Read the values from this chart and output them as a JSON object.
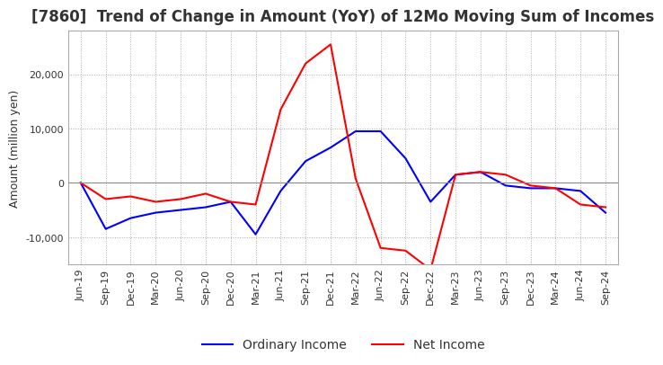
{
  "title": "[7860]  Trend of Change in Amount (YoY) of 12Mo Moving Sum of Incomes",
  "ylabel": "Amount (million yen)",
  "ylim": [
    -15000,
    28000
  ],
  "yticks": [
    -10000,
    0,
    10000,
    20000
  ],
  "background_color": "#ffffff",
  "grid_color": "#aaaaaa",
  "x_labels": [
    "Jun-19",
    "Sep-19",
    "Dec-19",
    "Mar-20",
    "Jun-20",
    "Sep-20",
    "Dec-20",
    "Mar-21",
    "Jun-21",
    "Sep-21",
    "Dec-21",
    "Mar-22",
    "Jun-22",
    "Sep-22",
    "Dec-22",
    "Mar-23",
    "Jun-23",
    "Sep-23",
    "Dec-23",
    "Mar-24",
    "Jun-24",
    "Sep-24"
  ],
  "ordinary_income": [
    0,
    -8500,
    -6500,
    -5500,
    -5000,
    -4500,
    -3500,
    -9500,
    -1500,
    4000,
    6500,
    9500,
    9500,
    4500,
    -3500,
    1500,
    2000,
    -500,
    -1000,
    -1000,
    -1500,
    -5500
  ],
  "net_income": [
    0,
    -3000,
    -2500,
    -3500,
    -3000,
    -2000,
    -3500,
    -4000,
    13500,
    22000,
    25500,
    800,
    -12000,
    -12500,
    -16000,
    1500,
    2000,
    1500,
    -500,
    -1000,
    -4000,
    -4500
  ],
  "ordinary_color": "#0000ff",
  "net_color": "#ff0000",
  "title_fontsize": 12,
  "axis_fontsize": 9,
  "tick_fontsize": 8,
  "legend_fontsize": 10
}
